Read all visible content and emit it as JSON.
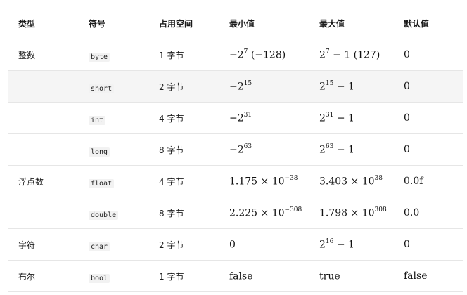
{
  "headers": [
    "类型",
    "符号",
    "占用空间",
    "最小值",
    "最大值",
    "默认值"
  ],
  "rows": [
    {
      "category": "整数",
      "symbol": "byte",
      "size": "1 字节",
      "min": {
        "base": "−2",
        "exp": "7",
        "tail": " (−128)"
      },
      "max": {
        "base": "2",
        "exp": "7",
        "tail": " − 1 (127)"
      },
      "default": "0"
    },
    {
      "category": "",
      "symbol": "short",
      "size": "2 字节",
      "min": {
        "base": "−2",
        "exp": "15",
        "tail": ""
      },
      "max": {
        "base": "2",
        "exp": "15",
        "tail": " − 1"
      },
      "default": "0"
    },
    {
      "category": "",
      "symbol": "int",
      "size": "4 字节",
      "min": {
        "base": "−2",
        "exp": "31",
        "tail": ""
      },
      "max": {
        "base": "2",
        "exp": "31",
        "tail": " − 1"
      },
      "default": "0"
    },
    {
      "category": "",
      "symbol": "long",
      "size": "8 字节",
      "min": {
        "base": "−2",
        "exp": "63",
        "tail": ""
      },
      "max": {
        "base": "2",
        "exp": "63",
        "tail": " − 1"
      },
      "default": "0"
    },
    {
      "category": "浮点数",
      "symbol": "float",
      "size": "4 字节",
      "min": {
        "base": "1.175 × 10",
        "exp": "−38",
        "tail": ""
      },
      "max": {
        "base": "3.403 × 10",
        "exp": "38",
        "tail": ""
      },
      "default": "0.0f"
    },
    {
      "category": "",
      "symbol": "double",
      "size": "8 字节",
      "min": {
        "base": "2.225 × 10",
        "exp": "−308",
        "tail": ""
      },
      "max": {
        "base": "1.798 × 10",
        "exp": "308",
        "tail": ""
      },
      "default": "0.0"
    },
    {
      "category": "字符",
      "symbol": "char",
      "size": "2 字节",
      "min": {
        "base": "0",
        "exp": "",
        "tail": ""
      },
      "max": {
        "base": "2",
        "exp": "16",
        "tail": " − 1"
      },
      "default": "0"
    },
    {
      "category": "布尔",
      "symbol": "bool",
      "size": "1 字节",
      "min": {
        "base": "false",
        "exp": "",
        "tail": ""
      },
      "max": {
        "base": "true",
        "exp": "",
        "tail": ""
      },
      "default": "false"
    }
  ]
}
